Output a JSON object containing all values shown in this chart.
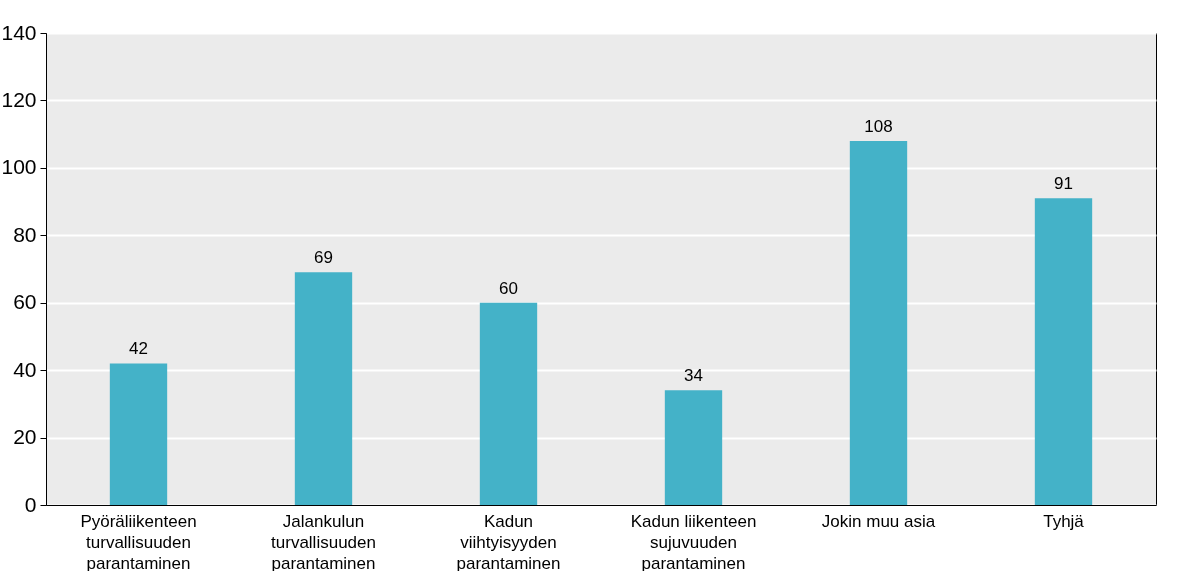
{
  "chart_data": {
    "type": "bar",
    "categories": [
      "Pyöräliikenteen turvallisuuden parantaminen",
      "Jalankulun turvallisuuden parantaminen",
      "Kadun viihtyisyyden parantaminen",
      "Kadun liikenteen sujuvuuden parantaminen",
      "Jokin muu asia",
      "Tyhjä"
    ],
    "values": [
      42,
      69,
      60,
      34,
      108,
      91
    ],
    "color": "#44b2c8",
    "ylim": [
      0,
      140
    ],
    "yticks": [
      0,
      20,
      40,
      60,
      80,
      100,
      120,
      140
    ],
    "grid": "y",
    "data_labels": true
  }
}
